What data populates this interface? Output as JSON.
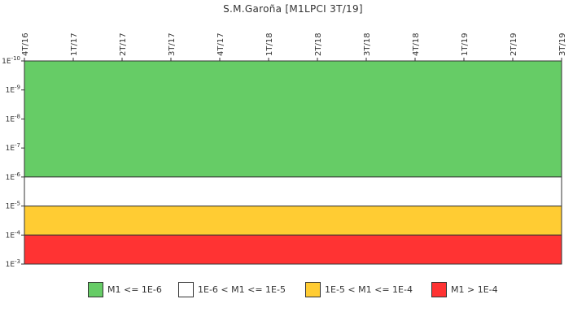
{
  "chart_data": {
    "type": "area",
    "title": "S.M.Garoña [M1LPCI 3T/19]",
    "x_categories": [
      "4T/16",
      "1T/17",
      "2T/17",
      "3T/17",
      "4T/17",
      "1T/18",
      "2T/18",
      "3T/18",
      "4T/18",
      "1T/19",
      "2T/19",
      "3T/19"
    ],
    "y_scale": "log",
    "y_ticks": [
      {
        "label": "1E-10",
        "exp": -10
      },
      {
        "label": "1E-9",
        "exp": -9
      },
      {
        "label": "1E-8",
        "exp": -8
      },
      {
        "label": "1E-7",
        "exp": -7
      },
      {
        "label": "1E-6",
        "exp": -6
      },
      {
        "label": "1E-5",
        "exp": -5
      },
      {
        "label": "1E-4",
        "exp": -4
      },
      {
        "label": "1E-3",
        "exp": -3
      }
    ],
    "ylim": [
      1e-10,
      0.001
    ],
    "y_axis_inverted": true,
    "bands": [
      {
        "from": 1e-10,
        "to": 1e-06,
        "color": "#66cc66",
        "label": "M1 <= 1E-6"
      },
      {
        "from": 1e-06,
        "to": 1e-05,
        "color": "#ffffff",
        "label": "1E-6 < M1 <= 1E-5"
      },
      {
        "from": 1e-05,
        "to": 0.0001,
        "color": "#ffcc33",
        "label": "1E-5 < M1 <= 1E-4"
      },
      {
        "from": 0.0001,
        "to": 0.001,
        "color": "#ff3333",
        "label": "M1 > 1E-4"
      }
    ],
    "legend_position": "bottom",
    "series": []
  }
}
